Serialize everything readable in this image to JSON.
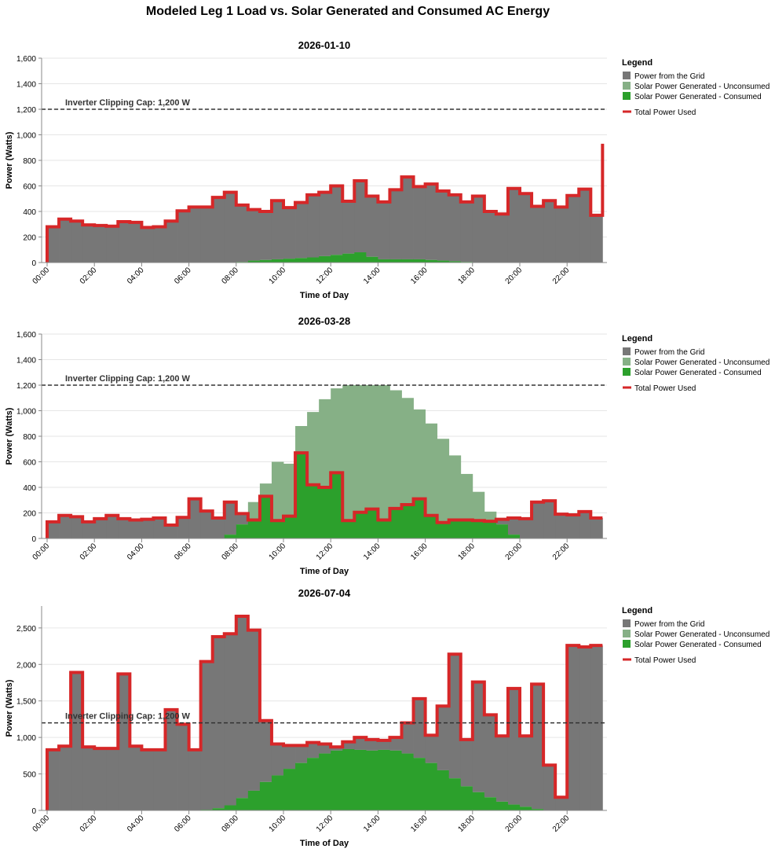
{
  "title": "Modeled Leg 1 Load vs. Solar Generated and Consumed AC Energy",
  "legend": {
    "title": "Legend",
    "items": [
      {
        "label": "Power from the Grid",
        "color": "#777777",
        "kind": "square"
      },
      {
        "label": "Solar Power Generated - Unconsumed",
        "color": "#86b086",
        "kind": "square"
      },
      {
        "label": "Solar Power Generated - Consumed",
        "color": "#2ca02c",
        "kind": "square"
      },
      {
        "label": "Total Power Used",
        "color": "#d62728",
        "kind": "line"
      }
    ]
  },
  "chart_data": [
    {
      "type": "area",
      "title": "2026-01-10",
      "xlabel": "Time of Day",
      "ylabel": "Power (Watts)",
      "ylim": [
        0,
        1600
      ],
      "yticks": [
        0,
        200,
        400,
        600,
        800,
        1000,
        1200,
        1400,
        1600
      ],
      "ytick_labels": [
        "0",
        "200",
        "400",
        "600",
        "800",
        "1,000",
        "1,200",
        "1,400",
        "1,600"
      ],
      "xticks": [
        "00:00",
        "02:00",
        "04:00",
        "06:00",
        "08:00",
        "10:00",
        "12:00",
        "14:00",
        "16:00",
        "18:00",
        "20:00",
        "22:00"
      ],
      "step_minutes": 30,
      "annotation": {
        "text": "Inverter Clipping Cap: 1,200 W",
        "value": 1200
      },
      "grid": true,
      "legend_position": "right",
      "series": [
        {
          "name": "Total Power Used",
          "values": [
            280,
            340,
            325,
            295,
            290,
            285,
            320,
            315,
            275,
            280,
            325,
            405,
            435,
            435,
            510,
            550,
            450,
            415,
            400,
            485,
            430,
            470,
            530,
            550,
            600,
            480,
            640,
            520,
            475,
            570,
            670,
            595,
            615,
            560,
            530,
            475,
            520,
            400,
            380,
            580,
            540,
            440,
            485,
            435,
            525,
            575,
            370
          ],
          "end_value": 930
        },
        {
          "name": "Solar Power Generated - Consumed",
          "values": [
            0,
            0,
            0,
            0,
            0,
            0,
            0,
            0,
            0,
            0,
            0,
            0,
            0,
            0,
            0,
            0,
            5,
            15,
            20,
            25,
            30,
            35,
            40,
            50,
            60,
            70,
            80,
            45,
            25,
            25,
            25,
            25,
            20,
            15,
            10,
            5,
            0,
            0,
            0,
            0,
            0,
            0,
            0,
            0,
            0,
            0,
            0
          ]
        },
        {
          "name": "Solar Power Generated - Unconsumed",
          "values": [
            0,
            0,
            0,
            0,
            0,
            0,
            0,
            0,
            0,
            0,
            0,
            0,
            0,
            0,
            0,
            0,
            0,
            0,
            0,
            0,
            0,
            0,
            0,
            0,
            0,
            0,
            0,
            0,
            0,
            0,
            0,
            0,
            0,
            0,
            0,
            0,
            0,
            0,
            0,
            0,
            0,
            0,
            0,
            0,
            0,
            0,
            0
          ]
        }
      ]
    },
    {
      "type": "area",
      "title": "2026-03-28",
      "xlabel": "Time of Day",
      "ylabel": "Power (Watts)",
      "ylim": [
        0,
        1600
      ],
      "yticks": [
        0,
        200,
        400,
        600,
        800,
        1000,
        1200,
        1400,
        1600
      ],
      "ytick_labels": [
        "0",
        "200",
        "400",
        "600",
        "800",
        "1,000",
        "1,200",
        "1,400",
        "1,600"
      ],
      "xticks": [
        "00:00",
        "02:00",
        "04:00",
        "06:00",
        "08:00",
        "10:00",
        "12:00",
        "14:00",
        "16:00",
        "18:00",
        "20:00",
        "22:00"
      ],
      "step_minutes": 30,
      "annotation": {
        "text": "Inverter Clipping Cap: 1,200 W",
        "value": 1200
      },
      "grid": true,
      "legend_position": "right",
      "series": [
        {
          "name": "Total Power Used",
          "values": [
            130,
            180,
            170,
            130,
            155,
            180,
            155,
            145,
            150,
            160,
            105,
            165,
            310,
            215,
            160,
            285,
            195,
            145,
            330,
            140,
            175,
            670,
            420,
            400,
            515,
            140,
            205,
            230,
            145,
            235,
            265,
            310,
            180,
            125,
            145,
            145,
            140,
            135,
            150,
            160,
            155,
            285,
            295,
            190,
            185,
            210,
            160
          ]
        },
        {
          "name": "Solar Power Generated - Consumed",
          "values": [
            0,
            0,
            0,
            0,
            0,
            0,
            0,
            0,
            0,
            0,
            0,
            0,
            0,
            0,
            0,
            30,
            110,
            145,
            330,
            140,
            175,
            670,
            420,
            400,
            515,
            140,
            205,
            230,
            145,
            235,
            265,
            310,
            180,
            125,
            145,
            145,
            140,
            135,
            110,
            30,
            0,
            0,
            0,
            0,
            0,
            0,
            0
          ]
        },
        {
          "name": "Solar Power Generated - Unconsumed",
          "values": [
            0,
            0,
            0,
            0,
            0,
            0,
            0,
            0,
            0,
            0,
            0,
            0,
            0,
            0,
            0,
            0,
            0,
            140,
            100,
            460,
            410,
            210,
            570,
            690,
            660,
            1060,
            995,
            970,
            1055,
            925,
            835,
            700,
            720,
            655,
            505,
            360,
            225,
            75,
            0,
            0,
            0,
            0,
            0,
            0,
            0,
            0,
            0
          ]
        }
      ]
    },
    {
      "type": "area",
      "title": "2026-07-04",
      "xlabel": "Time of Day",
      "ylabel": "Power (Watts)",
      "ylim": [
        0,
        2800
      ],
      "yticks": [
        0,
        500,
        1000,
        1500,
        2000,
        2500
      ],
      "ytick_labels": [
        "0",
        "500",
        "1,000",
        "1,500",
        "2,000",
        "2,500"
      ],
      "xticks": [
        "00:00",
        "02:00",
        "04:00",
        "06:00",
        "08:00",
        "10:00",
        "12:00",
        "14:00",
        "16:00",
        "18:00",
        "20:00",
        "22:00"
      ],
      "step_minutes": 30,
      "annotation": {
        "text": "Inverter Clipping Cap: 1,200 W",
        "value": 1200
      },
      "grid": true,
      "legend_position": "right",
      "series": [
        {
          "name": "Total Power Used",
          "values": [
            830,
            880,
            1890,
            870,
            850,
            850,
            1870,
            880,
            830,
            830,
            1380,
            1180,
            830,
            2040,
            2380,
            2420,
            2660,
            2470,
            1230,
            910,
            890,
            890,
            930,
            910,
            870,
            940,
            1000,
            970,
            960,
            1000,
            1200,
            1530,
            1030,
            1430,
            2140,
            970,
            1760,
            1310,
            1020,
            1670,
            1020,
            1730,
            620,
            180,
            2260,
            2240,
            2260
          ]
        },
        {
          "name": "Solar Power Generated - Consumed",
          "values": [
            0,
            0,
            0,
            0,
            0,
            0,
            0,
            0,
            0,
            0,
            0,
            0,
            0,
            10,
            30,
            70,
            170,
            270,
            390,
            480,
            570,
            650,
            720,
            780,
            820,
            840,
            830,
            820,
            830,
            820,
            780,
            720,
            650,
            550,
            440,
            330,
            250,
            180,
            120,
            80,
            50,
            20,
            5,
            0,
            0,
            0,
            0
          ]
        },
        {
          "name": "Solar Power Generated - Unconsumed",
          "values": [
            0,
            0,
            0,
            0,
            0,
            0,
            0,
            0,
            0,
            0,
            0,
            0,
            0,
            0,
            0,
            0,
            0,
            0,
            0,
            0,
            0,
            0,
            0,
            0,
            0,
            0,
            0,
            0,
            0,
            0,
            0,
            0,
            0,
            0,
            0,
            0,
            0,
            0,
            0,
            0,
            0,
            0,
            0,
            0,
            0,
            0,
            0
          ]
        }
      ]
    }
  ]
}
